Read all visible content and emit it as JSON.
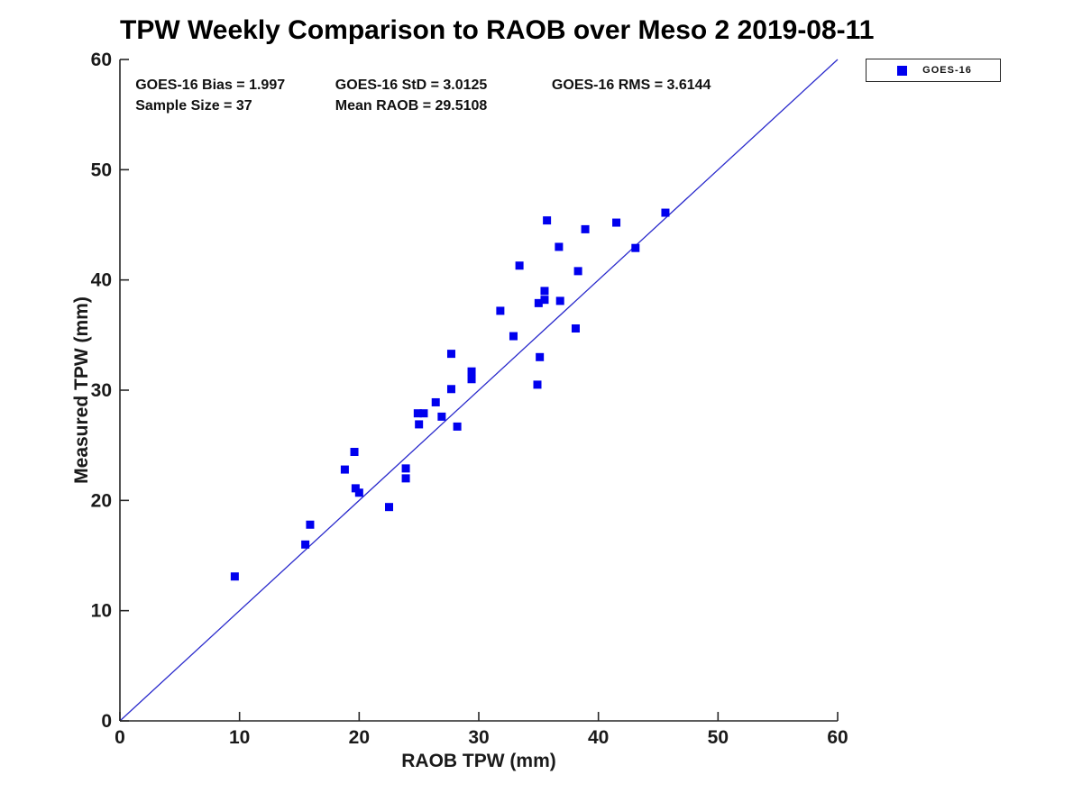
{
  "chart_data": {
    "type": "scatter",
    "title": "TPW Weekly Comparison to RAOB over Meso 2 2019-08-11",
    "xlabel": "RAOB TPW (mm)",
    "ylabel": "Measured TPW (mm)",
    "xlim": [
      0,
      60
    ],
    "ylim": [
      0,
      60
    ],
    "xticks": [
      0,
      10,
      20,
      30,
      40,
      50,
      60
    ],
    "yticks": [
      0,
      10,
      20,
      30,
      40,
      50,
      60
    ],
    "grid": false,
    "marker_color": "#0000ee",
    "line_color": "#2a2acc",
    "axis_color": "#262626",
    "legend": {
      "position": "top-right-outside",
      "entries": [
        {
          "label": "GOES-16",
          "marker": "square",
          "color": "#0000ee"
        }
      ]
    },
    "reference_line": {
      "from": [
        0,
        0
      ],
      "to": [
        60,
        60
      ]
    },
    "annotations": [
      {
        "text": "GOES-16 Bias = 1.997",
        "x": 1.3,
        "y": 57.8
      },
      {
        "text": "GOES-16 StD = 3.0125",
        "x": 18.0,
        "y": 57.8
      },
      {
        "text": "GOES-16 RMS = 3.6144",
        "x": 36.1,
        "y": 57.8
      },
      {
        "text": "Sample Size = 37",
        "x": 1.3,
        "y": 55.9
      },
      {
        "text": "Mean RAOB = 29.5108",
        "x": 18.0,
        "y": 55.9
      }
    ],
    "series": [
      {
        "name": "GOES-16",
        "marker": "square",
        "color": "#0000ee",
        "points": [
          [
            9.6,
            13.1
          ],
          [
            15.5,
            16.0
          ],
          [
            15.9,
            17.8
          ],
          [
            18.8,
            22.8
          ],
          [
            19.6,
            24.4
          ],
          [
            19.7,
            21.1
          ],
          [
            20.0,
            20.7
          ],
          [
            22.5,
            19.4
          ],
          [
            23.9,
            22.0
          ],
          [
            23.9,
            22.9
          ],
          [
            24.9,
            27.9
          ],
          [
            25.0,
            26.9
          ],
          [
            25.4,
            27.9
          ],
          [
            26.4,
            28.9
          ],
          [
            26.9,
            27.6
          ],
          [
            27.7,
            30.1
          ],
          [
            27.7,
            33.3
          ],
          [
            28.2,
            26.7
          ],
          [
            29.4,
            31.0
          ],
          [
            29.4,
            31.7
          ],
          [
            31.8,
            37.2
          ],
          [
            32.9,
            34.9
          ],
          [
            33.4,
            41.3
          ],
          [
            34.9,
            30.5
          ],
          [
            35.0,
            37.9
          ],
          [
            35.1,
            33.0
          ],
          [
            35.5,
            38.2
          ],
          [
            35.5,
            39.0
          ],
          [
            35.7,
            45.4
          ],
          [
            36.7,
            43.0
          ],
          [
            36.8,
            38.1
          ],
          [
            38.1,
            35.6
          ],
          [
            38.3,
            40.8
          ],
          [
            38.9,
            44.6
          ],
          [
            41.5,
            45.2
          ],
          [
            43.1,
            42.9
          ],
          [
            45.6,
            46.1
          ]
        ]
      }
    ]
  }
}
